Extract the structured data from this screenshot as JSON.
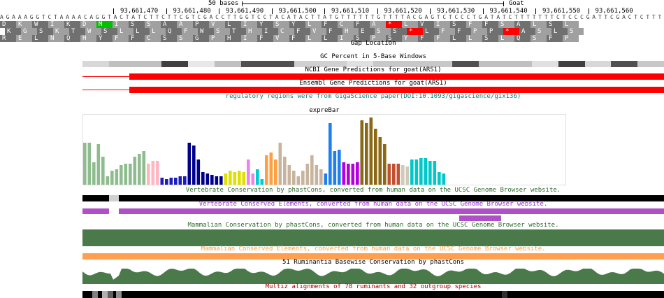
{
  "ruler": {
    "scale_label": "50 bases",
    "assembly_label": "Goat",
    "positions": [
      "93,661,470",
      "93,661,480",
      "93,661,490",
      "93,661,500",
      "93,661,510",
      "93,661,520",
      "93,661,530",
      "93,661,540",
      "93,661,550",
      "93,661,560"
    ]
  },
  "sequence": "AGAAAGGTCTAAAACAGGTACTATCTTCTTCGTCGACCTTGGTCCTACATACTTATGTTTTTTGTTTTACGAGTCTCCCTGATATCTTTTTTTCTCCCGATTCGACTCTTT",
  "frames": [
    {
      "cells": [
        "D",
        "K",
        "W",
        "I",
        "K",
        "D",
        "M",
        "I",
        "S",
        "S",
        "A",
        "A",
        "P",
        "V",
        "L",
        "I",
        "Y",
        "S",
        "Y",
        "L",
        "F",
        "C",
        "F",
        "A",
        "*",
        "L",
        "V",
        "I",
        "S",
        "F",
        "F",
        "S",
        "A",
        "L",
        "S",
        "L"
      ]
    },
    {
      "cells": [
        "K",
        "G",
        "S",
        "K",
        "T",
        "W",
        "S",
        "L",
        "L",
        "L",
        "Q",
        "F",
        "W",
        "S",
        "T",
        "H",
        "I",
        "C",
        "F",
        "V",
        "F",
        "H",
        "E",
        "S",
        "S",
        "*",
        "L",
        "F",
        "F",
        "P",
        "P",
        "*",
        "A",
        "S",
        "L",
        "S"
      ]
    },
    {
      "cells": [
        "R",
        "E",
        "L",
        "N",
        "Q",
        "H",
        "Y",
        "F",
        "F",
        "C",
        "S",
        "S",
        "G",
        "P",
        "H",
        "I",
        "F",
        "V",
        "F",
        "L",
        "L",
        "I",
        "S",
        "P",
        "S",
        "Y",
        "F",
        "F",
        "L",
        "L",
        "S",
        "L",
        "Q",
        "S",
        "F",
        "P"
      ]
    }
  ],
  "colors": {
    "start_codon": "#00c000",
    "stop_codon": "#ff0000",
    "dark_aa": "#707070",
    "light_aa": "#a0a0a0",
    "gene": "#ff0000",
    "conserved_elements": "#b050c8",
    "mammal": "#4a7a4a",
    "mammal_elements": "#ffa050"
  },
  "tracks": {
    "gap": "Gap Location",
    "gc": "GC Percent in 5-Base Windows",
    "ncbi": "NCBI Gene Predictions for goat(ARS1)",
    "ensembl": "Ensembl Gene Predictions for goat(ARS1)",
    "regulatory": "regulatory regions were from GigaScience paper(DOI:10.1093/gigascience/gix136)",
    "expre": "expreBar",
    "vert_cons": "Vertebrate Conservation by phastCons, converted from human data on the UCSC Genome Browser website.",
    "vert_elem": "Vertebrate Conserved Elements, converted from human data on the UCSC Genome Browser website.",
    "mam_cons": "Mammalian Conservation by phastCons, converted from human data on the UCSC Genome Browser website.",
    "mam_elem": "Mammalian Conserved Elements, converted from human data on the UCSC Genome Browser website.",
    "rumi": "51 Ruminantia Basewise Conservation by phastCons",
    "multiz": "Multiz alignments of 78 ruminants and 32 outgroup species"
  },
  "chart_data": {
    "type": "bar",
    "title": "expreBar",
    "groups": [
      {
        "color": "#8fbc8f",
        "values": [
          60,
          60,
          32,
          58,
          40,
          12,
          20,
          22,
          28,
          30,
          30,
          40,
          44,
          48
        ]
      },
      {
        "color": "#ffb6c1",
        "values": [
          30,
          34,
          34
        ]
      },
      {
        "color": "#1c1cbc",
        "values": [
          10,
          8,
          10,
          10,
          12,
          12
        ]
      },
      {
        "color": "#00008b",
        "values": [
          60,
          56,
          36,
          18,
          16,
          14,
          12,
          12
        ]
      },
      {
        "color": "#dfdf00",
        "values": [
          16,
          20,
          18,
          20,
          18
        ]
      },
      {
        "color": "#ee82ee",
        "values": [
          36,
          16
        ]
      },
      {
        "color": "#00cdcd",
        "values": [
          22,
          8
        ]
      },
      {
        "color": "#ff9f40",
        "values": [
          42,
          46,
          36
        ]
      },
      {
        "color": "#c8b49e",
        "values": [
          60,
          40,
          28,
          20,
          12,
          20,
          30,
          42,
          28,
          22
        ]
      },
      {
        "color": "#1e7ff0",
        "values": [
          16,
          88,
          48,
          50
        ]
      },
      {
        "color": "#b400e0",
        "values": [
          32,
          30,
          30,
          32
        ]
      },
      {
        "color": "#8b6914",
        "values": [
          92,
          88,
          96,
          80,
          68,
          58
        ]
      },
      {
        "color": "#c05030",
        "values": [
          30,
          30,
          30
        ]
      },
      {
        "color": "#d0c8b8",
        "values": [
          28,
          26
        ]
      },
      {
        "color": "#00c8c8",
        "values": [
          36,
          36,
          38,
          38,
          34,
          34,
          18,
          16
        ]
      }
    ],
    "ylim": [
      0,
      100
    ]
  }
}
